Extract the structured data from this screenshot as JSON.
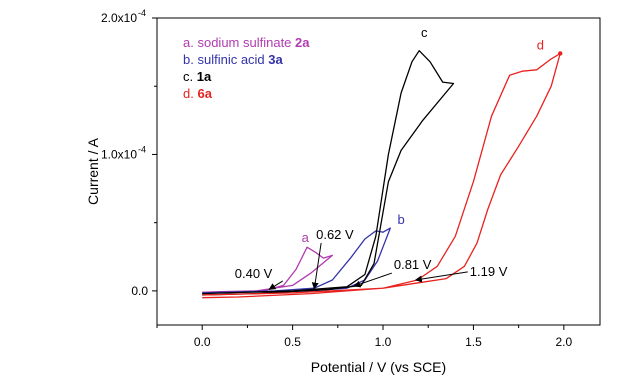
{
  "chart_data": {
    "type": "line",
    "xlabel": "Potential / V (vs SCE)",
    "ylabel": "Current / A",
    "xlim": [
      -0.25,
      2.2
    ],
    "ylim": [
      -2.5e-05,
      0.0002
    ],
    "x_ticks": [
      {
        "value": 0.0,
        "label": "0.0"
      },
      {
        "value": 0.5,
        "label": "0.5"
      },
      {
        "value": 1.0,
        "label": "1.0"
      },
      {
        "value": 1.5,
        "label": "1.5"
      },
      {
        "value": 2.0,
        "label": "2.0"
      }
    ],
    "y_ticks": [
      {
        "value": 0.0,
        "label": "0.0",
        "exp": ""
      },
      {
        "value": 0.0001,
        "label": "1.0x10",
        "exp": "-4"
      },
      {
        "value": 0.0002,
        "label": "2.0x10",
        "exp": "-4"
      }
    ],
    "grid": false,
    "legend_position": "top-left",
    "legend": [
      {
        "letter": "a.",
        "name": "sodium sulfinate",
        "id": "2a",
        "color": "#b03cb0"
      },
      {
        "letter": "b.",
        "name": "sulfinic acid",
        "id": "3a",
        "color": "#3333aa"
      },
      {
        "letter": "c.",
        "name": "",
        "id": "1a",
        "color": "#000000"
      },
      {
        "letter": "d.",
        "name": "",
        "id": "6a",
        "color": "#e8231f"
      }
    ],
    "series": [
      {
        "name": "a",
        "color": "#b03cb0",
        "points": [
          [
            0,
            -1.5e-06
          ],
          [
            0.2,
            -1e-06
          ],
          [
            0.35,
            5e-07
          ],
          [
            0.45,
            4e-06
          ],
          [
            0.52,
            1.6e-05
          ],
          [
            0.58,
            3.2e-05
          ],
          [
            0.63,
            2.8e-05
          ],
          [
            0.67,
            2.4e-05
          ],
          [
            0.72,
            2.6e-05
          ],
          [
            0.6,
            1.3e-05
          ],
          [
            0.5,
            4e-06
          ],
          [
            0.3,
            0.0
          ],
          [
            0.1,
            -5e-07
          ],
          [
            0,
            -1e-06
          ]
        ]
      },
      {
        "name": "b",
        "color": "#3333aa",
        "points": [
          [
            0,
            -1.5e-06
          ],
          [
            0.4,
            0.0
          ],
          [
            0.62,
            2e-06
          ],
          [
            0.72,
            8e-06
          ],
          [
            0.82,
            2.4e-05
          ],
          [
            0.9,
            3.8e-05
          ],
          [
            0.96,
            4.4e-05
          ],
          [
            1.0,
            4.3e-05
          ],
          [
            1.04,
            4.6e-05
          ],
          [
            0.97,
            2.2e-05
          ],
          [
            0.9,
            8e-06
          ],
          [
            0.8,
            2e-06
          ],
          [
            0.6,
            0.0
          ],
          [
            0.3,
            -8e-07
          ],
          [
            0,
            -1.5e-06
          ]
        ]
      },
      {
        "name": "c",
        "color": "#000000",
        "points": [
          [
            0,
            -2e-06
          ],
          [
            0.5,
            0.0
          ],
          [
            0.8,
            3e-06
          ],
          [
            0.9,
            1.2e-05
          ],
          [
            0.96,
            4e-05
          ],
          [
            1.03,
            0.0001
          ],
          [
            1.1,
            0.000145
          ],
          [
            1.16,
            0.000168
          ],
          [
            1.2,
            0.000176
          ],
          [
            1.26,
            0.000168
          ],
          [
            1.33,
            0.000153
          ],
          [
            1.39,
            0.000152
          ],
          [
            1.22,
            0.000125
          ],
          [
            1.1,
            0.000103
          ],
          [
            1.03,
            8e-05
          ],
          [
            0.99,
            5e-05
          ],
          [
            0.95,
            2e-05
          ],
          [
            0.88,
            4e-06
          ],
          [
            0.7,
            1e-06
          ],
          [
            0.3,
            -2e-06
          ],
          [
            0,
            -3e-06
          ]
        ]
      },
      {
        "name": "d",
        "color": "#e8231f",
        "points": [
          [
            0,
            -3e-06
          ],
          [
            0.5,
            -1.5e-06
          ],
          [
            1.0,
            2e-06
          ],
          [
            1.19,
            8e-06
          ],
          [
            1.3,
            1.8e-05
          ],
          [
            1.4,
            4e-05
          ],
          [
            1.5,
            8e-05
          ],
          [
            1.6,
            0.000128
          ],
          [
            1.7,
            0.000158
          ],
          [
            1.77,
            0.000161
          ],
          [
            1.85,
            0.000162
          ],
          [
            1.93,
            0.00017
          ],
          [
            1.98,
            0.000174
          ],
          [
            1.93,
            0.00015
          ],
          [
            1.85,
            0.000128
          ],
          [
            1.75,
            0.000106
          ],
          [
            1.65,
            8.5e-05
          ],
          [
            1.58,
            6e-05
          ],
          [
            1.52,
            3.5e-05
          ],
          [
            1.45,
            1.8e-05
          ],
          [
            1.35,
            9e-06
          ],
          [
            1.2,
            6e-06
          ],
          [
            1.0,
            2e-06
          ],
          [
            0.6,
            -2e-06
          ],
          [
            0.2,
            -4.5e-06
          ],
          [
            0,
            -5e-06
          ]
        ]
      }
    ],
    "curve_labels": [
      {
        "text": "a",
        "x": 0.55,
        "y": 3.6e-05,
        "color": "#b03cb0"
      },
      {
        "text": "b",
        "x": 1.08,
        "y": 4.9e-05,
        "color": "#3333aa"
      },
      {
        "text": "c",
        "x": 1.21,
        "y": 0.000186,
        "color": "#000000"
      },
      {
        "text": "d",
        "x": 1.85,
        "y": 0.000177,
        "color": "#e8231f"
      }
    ],
    "annotations": [
      {
        "text": "0.40 V",
        "tx": 0.18,
        "ty": 9.5e-06,
        "ax": 0.37,
        "ay": 1e-06
      },
      {
        "text": "0.62 V",
        "tx": 0.63,
        "ty": 3.8e-05,
        "ax": 0.62,
        "ay": 1.5e-06
      },
      {
        "text": "0.81 V",
        "tx": 1.06,
        "ty": 1.6e-05,
        "ax": 0.84,
        "ay": 3.5e-06
      },
      {
        "text": "1.19 V",
        "tx": 1.48,
        "ty": 1.1e-05,
        "ax": 1.18,
        "ay": 8e-06
      }
    ]
  }
}
